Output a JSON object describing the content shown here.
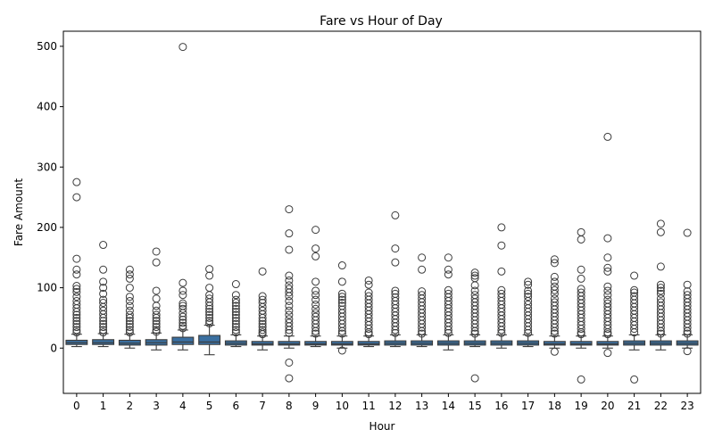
{
  "chart_data": {
    "type": "box",
    "title": "Fare vs Hour of Day",
    "xlabel": "Hour",
    "ylabel": "Fare Amount",
    "ylim": [
      -75,
      525
    ],
    "yticks": [
      0,
      100,
      200,
      300,
      400,
      500
    ],
    "grid": false,
    "box_color": "#3a6fa0",
    "categories": [
      "0",
      "1",
      "2",
      "3",
      "4",
      "5",
      "6",
      "7",
      "8",
      "9",
      "10",
      "11",
      "12",
      "13",
      "14",
      "15",
      "16",
      "17",
      "18",
      "19",
      "20",
      "21",
      "22",
      "23"
    ],
    "boxes": [
      {
        "q1": 6,
        "median": 9,
        "q3": 13,
        "whisker_low": 2.5,
        "whisker_high": 23,
        "outliers": [
          275,
          250,
          148,
          130,
          122,
          103,
          98,
          93,
          85,
          78,
          72,
          66,
          60,
          55,
          50,
          45,
          40,
          35,
          30,
          26
        ]
      },
      {
        "q1": 6,
        "median": 9,
        "q3": 14,
        "whisker_low": 2.5,
        "whisker_high": 24,
        "outliers": [
          171,
          130,
          110,
          100,
          90,
          80,
          75,
          68,
          62,
          56,
          50,
          45,
          40,
          35,
          30,
          26
        ]
      },
      {
        "q1": 5,
        "median": 8,
        "q3": 13,
        "whisker_low": 0,
        "whisker_high": 23,
        "outliers": [
          130,
          122,
          115,
          100,
          85,
          78,
          70,
          62,
          55,
          50,
          45,
          40,
          35,
          30,
          26
        ]
      },
      {
        "q1": 5,
        "median": 9,
        "q3": 14,
        "whisker_low": -3,
        "whisker_high": 25,
        "outliers": [
          160,
          142,
          95,
          82,
          70,
          62,
          55,
          50,
          45,
          40,
          35,
          30,
          27
        ]
      },
      {
        "q1": 6,
        "median": 10,
        "q3": 18,
        "whisker_low": -3,
        "whisker_high": 30,
        "outliers": [
          499,
          108,
          95,
          88,
          74,
          70,
          65,
          58,
          52,
          47,
          42,
          37,
          33
        ]
      },
      {
        "q1": 6,
        "median": 10,
        "q3": 21,
        "whisker_low": -11,
        "whisker_high": 38,
        "outliers": [
          131,
          120,
          100,
          88,
          82,
          76,
          70,
          65,
          60,
          55,
          50,
          45,
          41
        ]
      },
      {
        "q1": 5,
        "median": 8,
        "q3": 12,
        "whisker_low": 2.5,
        "whisker_high": 22,
        "outliers": [
          106,
          88,
          80,
          75,
          70,
          65,
          60,
          55,
          50,
          45,
          40,
          35,
          30,
          26
        ]
      },
      {
        "q1": 5,
        "median": 7,
        "q3": 11,
        "whisker_low": -3,
        "whisker_high": 20,
        "outliers": [
          127,
          86,
          80,
          75,
          68,
          62,
          56,
          50,
          45,
          40,
          35,
          30,
          26,
          23
        ]
      },
      {
        "q1": 5,
        "median": 7,
        "q3": 11,
        "whisker_low": 0,
        "whisker_high": 20,
        "outliers": [
          230,
          190,
          163,
          120,
          112,
          104,
          98,
          92,
          86,
          78,
          70,
          62,
          55,
          48,
          42,
          36,
          30,
          25,
          -24,
          -50
        ]
      },
      {
        "q1": 5,
        "median": 7,
        "q3": 11,
        "whisker_low": 2.5,
        "whisker_high": 20,
        "outliers": [
          196,
          165,
          152,
          110,
          95,
          88,
          80,
          72,
          65,
          58,
          52,
          46,
          40,
          34,
          28,
          24
        ]
      },
      {
        "q1": 5,
        "median": 7,
        "q3": 11,
        "whisker_low": 0,
        "whisker_high": 20,
        "outliers": [
          137,
          110,
          90,
          85,
          80,
          75,
          70,
          64,
          58,
          52,
          46,
          40,
          34,
          28,
          24,
          -4
        ]
      },
      {
        "q1": 5,
        "median": 7,
        "q3": 11,
        "whisker_low": 2.5,
        "whisker_high": 20,
        "outliers": [
          112,
          105,
          92,
          86,
          80,
          74,
          68,
          62,
          56,
          50,
          44,
          38,
          32,
          26,
          23
        ]
      },
      {
        "q1": 5,
        "median": 8,
        "q3": 12,
        "whisker_low": 2.5,
        "whisker_high": 22,
        "outliers": [
          220,
          165,
          142,
          95,
          90,
          84,
          78,
          72,
          66,
          60,
          54,
          48,
          42,
          36,
          30,
          25
        ]
      },
      {
        "q1": 5,
        "median": 8,
        "q3": 12,
        "whisker_low": 2.5,
        "whisker_high": 22,
        "outliers": [
          150,
          130,
          94,
          88,
          82,
          76,
          70,
          64,
          58,
          52,
          46,
          40,
          34,
          28,
          24
        ]
      },
      {
        "q1": 5,
        "median": 8,
        "q3": 12,
        "whisker_low": -3,
        "whisker_high": 22,
        "outliers": [
          150,
          130,
          122,
          96,
          90,
          84,
          78,
          72,
          66,
          60,
          54,
          48,
          42,
          36,
          30,
          25
        ]
      },
      {
        "q1": 5,
        "median": 8,
        "q3": 12,
        "whisker_low": 2.5,
        "whisker_high": 22,
        "outliers": [
          125,
          120,
          116,
          104,
          95,
          88,
          82,
          76,
          70,
          64,
          58,
          52,
          46,
          40,
          34,
          28,
          24,
          -50
        ]
      },
      {
        "q1": 5,
        "median": 8,
        "q3": 12,
        "whisker_low": 0,
        "whisker_high": 22,
        "outliers": [
          200,
          170,
          127,
          96,
          90,
          84,
          78,
          72,
          66,
          60,
          54,
          48,
          42,
          36,
          30,
          25
        ]
      },
      {
        "q1": 5,
        "median": 8,
        "q3": 12,
        "whisker_low": 2.5,
        "whisker_high": 22,
        "outliers": [
          110,
          105,
          95,
          90,
          85,
          78,
          72,
          66,
          60,
          54,
          48,
          42,
          36,
          30,
          25
        ]
      },
      {
        "q1": 5,
        "median": 7,
        "q3": 11,
        "whisker_low": 0,
        "whisker_high": 20,
        "outliers": [
          147,
          141,
          118,
          110,
          102,
          96,
          90,
          82,
          76,
          70,
          64,
          58,
          52,
          46,
          40,
          34,
          28,
          24,
          -6
        ]
      },
      {
        "q1": 5,
        "median": 7,
        "q3": 11,
        "whisker_low": 0,
        "whisker_high": 20,
        "outliers": [
          192,
          180,
          130,
          115,
          98,
          92,
          86,
          80,
          74,
          68,
          62,
          56,
          50,
          44,
          38,
          32,
          26,
          23,
          -52
        ]
      },
      {
        "q1": 5,
        "median": 7,
        "q3": 11,
        "whisker_low": 0,
        "whisker_high": 20,
        "outliers": [
          350,
          182,
          150,
          133,
          127,
          102,
          95,
          88,
          80,
          74,
          68,
          62,
          56,
          50,
          44,
          38,
          32,
          26,
          23,
          -8
        ]
      },
      {
        "q1": 5,
        "median": 8,
        "q3": 12,
        "whisker_low": -3,
        "whisker_high": 22,
        "outliers": [
          120,
          96,
          92,
          86,
          80,
          74,
          68,
          62,
          56,
          50,
          44,
          38,
          32,
          26,
          -52
        ]
      },
      {
        "q1": 5,
        "median": 8,
        "q3": 12,
        "whisker_low": -3,
        "whisker_high": 22,
        "outliers": [
          206,
          192,
          135,
          105,
          100,
          95,
          90,
          82,
          76,
          70,
          64,
          58,
          52,
          46,
          40,
          34,
          28,
          24
        ]
      },
      {
        "q1": 5,
        "median": 8,
        "q3": 12,
        "whisker_low": 0,
        "whisker_high": 22,
        "outliers": [
          191,
          105,
          94,
          88,
          82,
          76,
          70,
          64,
          58,
          52,
          46,
          40,
          34,
          28,
          24,
          -5
        ]
      }
    ]
  }
}
